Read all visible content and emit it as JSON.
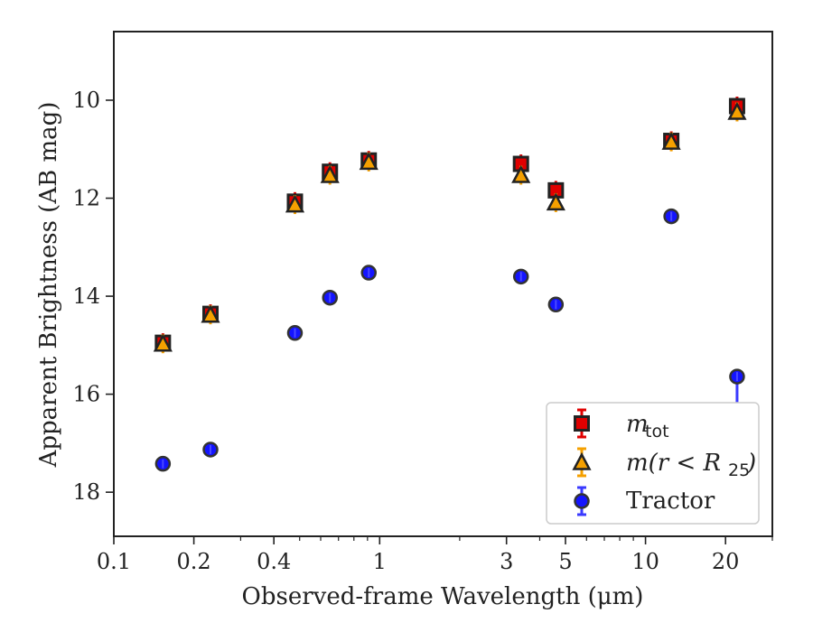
{
  "chart_data": {
    "type": "scatter",
    "xlabel": "Observed-frame Wavelength (μm)",
    "ylabel": "Apparent Brightness (AB mag)",
    "xscale": "log",
    "xlim": [
      0.1,
      30
    ],
    "ylim": [
      18.9,
      8.6
    ],
    "y_inverted": true,
    "x_tick_labels": [
      "0.1",
      "0.2",
      "0.4",
      "1",
      "3",
      "5",
      "10",
      "20"
    ],
    "x_ticks": [
      0.1,
      0.2,
      0.4,
      1,
      3,
      5,
      10,
      20
    ],
    "y_ticks": [
      10,
      12,
      14,
      16,
      18
    ],
    "y_tick_labels": [
      "10",
      "12",
      "14",
      "16",
      "18"
    ],
    "legend_position": "lower-right",
    "series": [
      {
        "label": "m_tot",
        "label_main": "m",
        "label_sub": "tot",
        "marker": "square",
        "color": "#e00000",
        "edgecolor": "#222222",
        "errcolor": "#e00000",
        "x": [
          0.153,
          0.231,
          0.48,
          0.65,
          0.91,
          3.4,
          4.6,
          12.5,
          22.1
        ],
        "y": [
          14.95,
          14.36,
          12.07,
          11.46,
          11.23,
          11.3,
          11.84,
          10.83,
          10.12
        ]
      },
      {
        "label": "m(r < R25)",
        "label_main": "m(r < R",
        "label_sub": "25",
        "label_end": ")",
        "marker": "triangle",
        "color": "#f5a000",
        "edgecolor": "#222222",
        "errcolor": "#f5a000",
        "x": [
          0.153,
          0.231,
          0.48,
          0.65,
          0.91,
          3.4,
          4.6,
          12.5,
          22.1
        ],
        "y": [
          14.97,
          14.38,
          12.13,
          11.53,
          11.26,
          11.53,
          12.09,
          10.85,
          10.24
        ]
      },
      {
        "label": "Tractor",
        "marker": "circle",
        "color": "#1414ff",
        "edgecolor": "#333333",
        "errcolor": "#3a3aff",
        "x": [
          0.153,
          0.231,
          0.48,
          0.65,
          0.91,
          3.4,
          4.6,
          12.5,
          22.1
        ],
        "y": [
          17.42,
          17.13,
          14.75,
          14.03,
          13.52,
          13.6,
          14.17,
          12.37,
          15.64
        ],
        "upper_limit_index": 8
      }
    ]
  }
}
